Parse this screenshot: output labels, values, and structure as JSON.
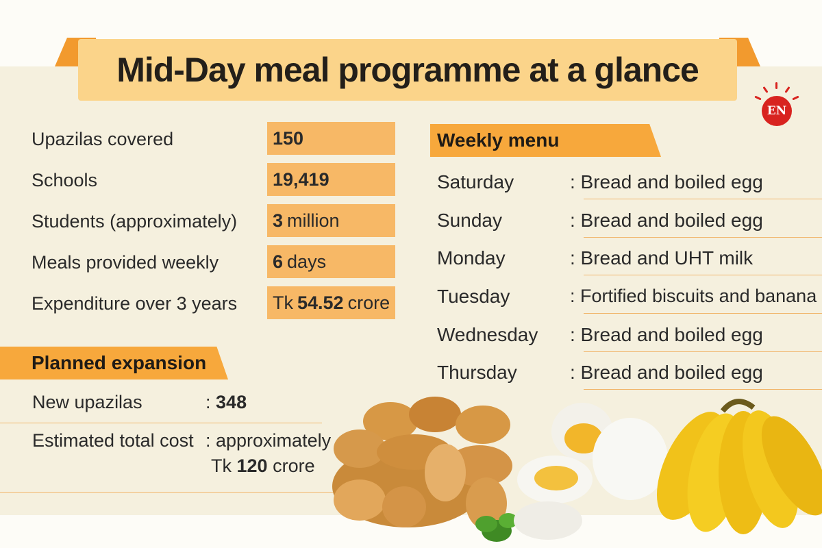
{
  "title": "Mid-Day meal programme at a glance",
  "logo": {
    "text": "EN"
  },
  "stats": [
    {
      "label": "Upazilas covered",
      "prefix": "",
      "value": "150",
      "suffix": ""
    },
    {
      "label": "Schools",
      "prefix": "",
      "value": "19,419",
      "suffix": ""
    },
    {
      "label": "Students (approximately)",
      "prefix": "",
      "value": "3",
      "suffix": "million"
    },
    {
      "label": "Meals provided weekly",
      "prefix": "",
      "value": "6",
      "suffix": "days"
    },
    {
      "label": "Expenditure over 3 years",
      "prefix": "Tk",
      "value": "54.52",
      "suffix": "crore"
    }
  ],
  "weekly_menu": {
    "heading": "Weekly menu",
    "days": [
      {
        "day": "Saturday",
        "meal": ": Bread and boiled egg"
      },
      {
        "day": "Sunday",
        "meal": ": Bread and boiled egg"
      },
      {
        "day": "Monday",
        "meal": ": Bread and UHT milk"
      },
      {
        "day": "Tuesday",
        "meal": ": Fortified biscuits and banana"
      },
      {
        "day": "Wednesday",
        "meal": ": Bread and boiled egg"
      },
      {
        "day": "Thursday",
        "meal": ": Bread and boiled egg"
      }
    ]
  },
  "expansion": {
    "heading": "Planned expansion",
    "new_upazilas_label": "New upazilas",
    "new_upazilas_colon": ":",
    "new_upazilas_value": "348",
    "cost_label": "Estimated total cost",
    "cost_line1": ": approximately",
    "cost_prefix": "Tk",
    "cost_value": "120",
    "cost_suffix": "crore"
  },
  "colors": {
    "accent_orange": "#f7a83c",
    "box_orange": "#f7b866",
    "banner": "#fbd48a",
    "logo_red": "#d8231f"
  },
  "icons": [
    "bread-rolls-illustration",
    "boiled-eggs-illustration",
    "banana-bunch-illustration",
    "sun-logo-icon"
  ]
}
